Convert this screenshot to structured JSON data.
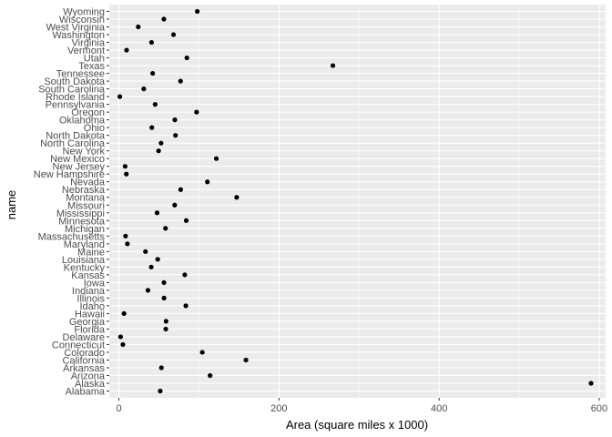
{
  "chart_data": {
    "type": "scatter",
    "title": "",
    "xlabel": "Area (square miles x 1000)",
    "ylabel": "name",
    "xlim": [
      -12,
      608
    ],
    "x_ticks": [
      0,
      200,
      400,
      600
    ],
    "grid": true,
    "colors": {
      "panel": "#EBEBEB",
      "grid_major": "#FFFFFF",
      "grid_minor": "#F5F5F5",
      "point": "#000000"
    },
    "categories": [
      "Alabama",
      "Alaska",
      "Arizona",
      "Arkansas",
      "California",
      "Colorado",
      "Connecticut",
      "Delaware",
      "Florida",
      "Georgia",
      "Hawaii",
      "Idaho",
      "Illinois",
      "Indiana",
      "Iowa",
      "Kansas",
      "Kentucky",
      "Louisiana",
      "Maine",
      "Maryland",
      "Massachusetts",
      "Michigan",
      "Minnesota",
      "Mississippi",
      "Missouri",
      "Montana",
      "Nebraska",
      "Nevada",
      "New Hampshire",
      "New Jersey",
      "New Mexico",
      "New York",
      "North Carolina",
      "North Dakota",
      "Ohio",
      "Oklahoma",
      "Oregon",
      "Pennsylvania",
      "Rhode Island",
      "South Carolina",
      "South Dakota",
      "Tennessee",
      "Texas",
      "Utah",
      "Vermont",
      "Virginia",
      "Washington",
      "West Virginia",
      "Wisconsin",
      "Wyoming"
    ],
    "values": [
      51.6,
      589.8,
      113.9,
      53.1,
      158.7,
      104.2,
      5.0,
      2.1,
      58.6,
      58.9,
      6.4,
      83.6,
      56.4,
      36.3,
      56.3,
      82.3,
      40.4,
      48.5,
      33.2,
      10.6,
      8.3,
      58.2,
      84.1,
      47.7,
      69.7,
      147.1,
      77.2,
      110.5,
      9.3,
      7.8,
      121.7,
      49.6,
      52.7,
      70.7,
      41.2,
      69.9,
      97.0,
      45.3,
      1.2,
      31.1,
      77.0,
      42.2,
      267.3,
      84.9,
      9.6,
      40.8,
      68.2,
      24.2,
      56.2,
      97.9
    ]
  }
}
